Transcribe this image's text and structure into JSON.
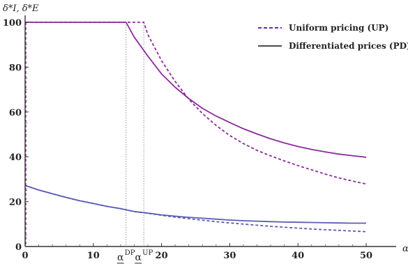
{
  "chart_data": {
    "type": "line",
    "ylabel": "δ*I, δ*E",
    "xlabel": "α",
    "xlim": [
      0,
      50
    ],
    "ylim": [
      0,
      100
    ],
    "xticks": [
      0,
      10,
      20,
      30,
      40,
      50
    ],
    "yticks": [
      0,
      20,
      40,
      60,
      80,
      100
    ],
    "grid": false,
    "legend_position": "top-right",
    "legend": [
      {
        "label": "Uniform pricing (UP)",
        "style": "dashed"
      },
      {
        "label": "Differentiated prices (PD)",
        "style": "solid"
      }
    ],
    "annotations": [
      {
        "x": 14.8,
        "label": "α",
        "sup": "DP"
      },
      {
        "x": 17.4,
        "label": "α",
        "sup": "UP"
      }
    ],
    "series": [
      {
        "key": "upper_UP",
        "style": "dashed",
        "color": "#8b2a9b",
        "x": [
          0,
          5,
          10,
          15,
          17.4,
          18,
          20,
          22,
          24,
          26,
          28,
          30,
          32,
          34,
          36,
          38,
          40,
          42,
          44,
          46,
          48,
          50
        ],
        "y": [
          100,
          100,
          100,
          100,
          100,
          94.5,
          82.9,
          73.6,
          65.7,
          59.3,
          54.0,
          49.5,
          45.9,
          42.9,
          40.4,
          38.2,
          36.1,
          34.2,
          32.3,
          30.6,
          29.2,
          27.9
        ]
      },
      {
        "key": "upper_PD",
        "style": "solid",
        "color": "#8b2a9b",
        "x": [
          0,
          5,
          10,
          14.8,
          16,
          18,
          20,
          22,
          24,
          26,
          28,
          30,
          32,
          34,
          36,
          38,
          40,
          42,
          44,
          46,
          48,
          50
        ],
        "y": [
          100,
          100,
          100,
          100,
          93.4,
          84.9,
          77.0,
          71.0,
          66.0,
          61.6,
          58.2,
          55.3,
          52.5,
          50.2,
          48.0,
          46.2,
          44.6,
          43.3,
          42.2,
          41.2,
          40.5,
          39.8
        ]
      },
      {
        "key": "lower_UP",
        "style": "dashed",
        "color": "#5b5bb5",
        "x": [
          0,
          2,
          4,
          6,
          8,
          10,
          12,
          14,
          16,
          18,
          20,
          22,
          24,
          26,
          28,
          30,
          32,
          34,
          36,
          38,
          40,
          42,
          44,
          46,
          48,
          50
        ],
        "y": [
          27.2,
          25.2,
          23.5,
          21.9,
          20.4,
          19.2,
          17.9,
          16.9,
          15.6,
          14.8,
          13.9,
          13.1,
          12.4,
          11.7,
          11.1,
          10.5,
          10.0,
          9.5,
          9.0,
          8.6,
          8.2,
          7.8,
          7.5,
          7.2,
          6.9,
          6.6
        ]
      },
      {
        "key": "lower_PD",
        "style": "solid",
        "color": "#5b5bb5",
        "x": [
          0,
          2,
          4,
          6,
          8,
          10,
          12,
          14,
          16,
          18,
          20,
          22,
          24,
          26,
          28,
          30,
          32,
          34,
          36,
          38,
          40,
          42,
          44,
          46,
          48,
          50
        ],
        "y": [
          27.2,
          25.2,
          23.5,
          21.9,
          20.4,
          19.2,
          17.9,
          16.9,
          15.6,
          14.9,
          14.1,
          13.5,
          13.0,
          12.6,
          12.2,
          11.8,
          11.5,
          11.3,
          11.1,
          10.9,
          10.8,
          10.7,
          10.6,
          10.5,
          10.4,
          10.4
        ]
      }
    ]
  }
}
